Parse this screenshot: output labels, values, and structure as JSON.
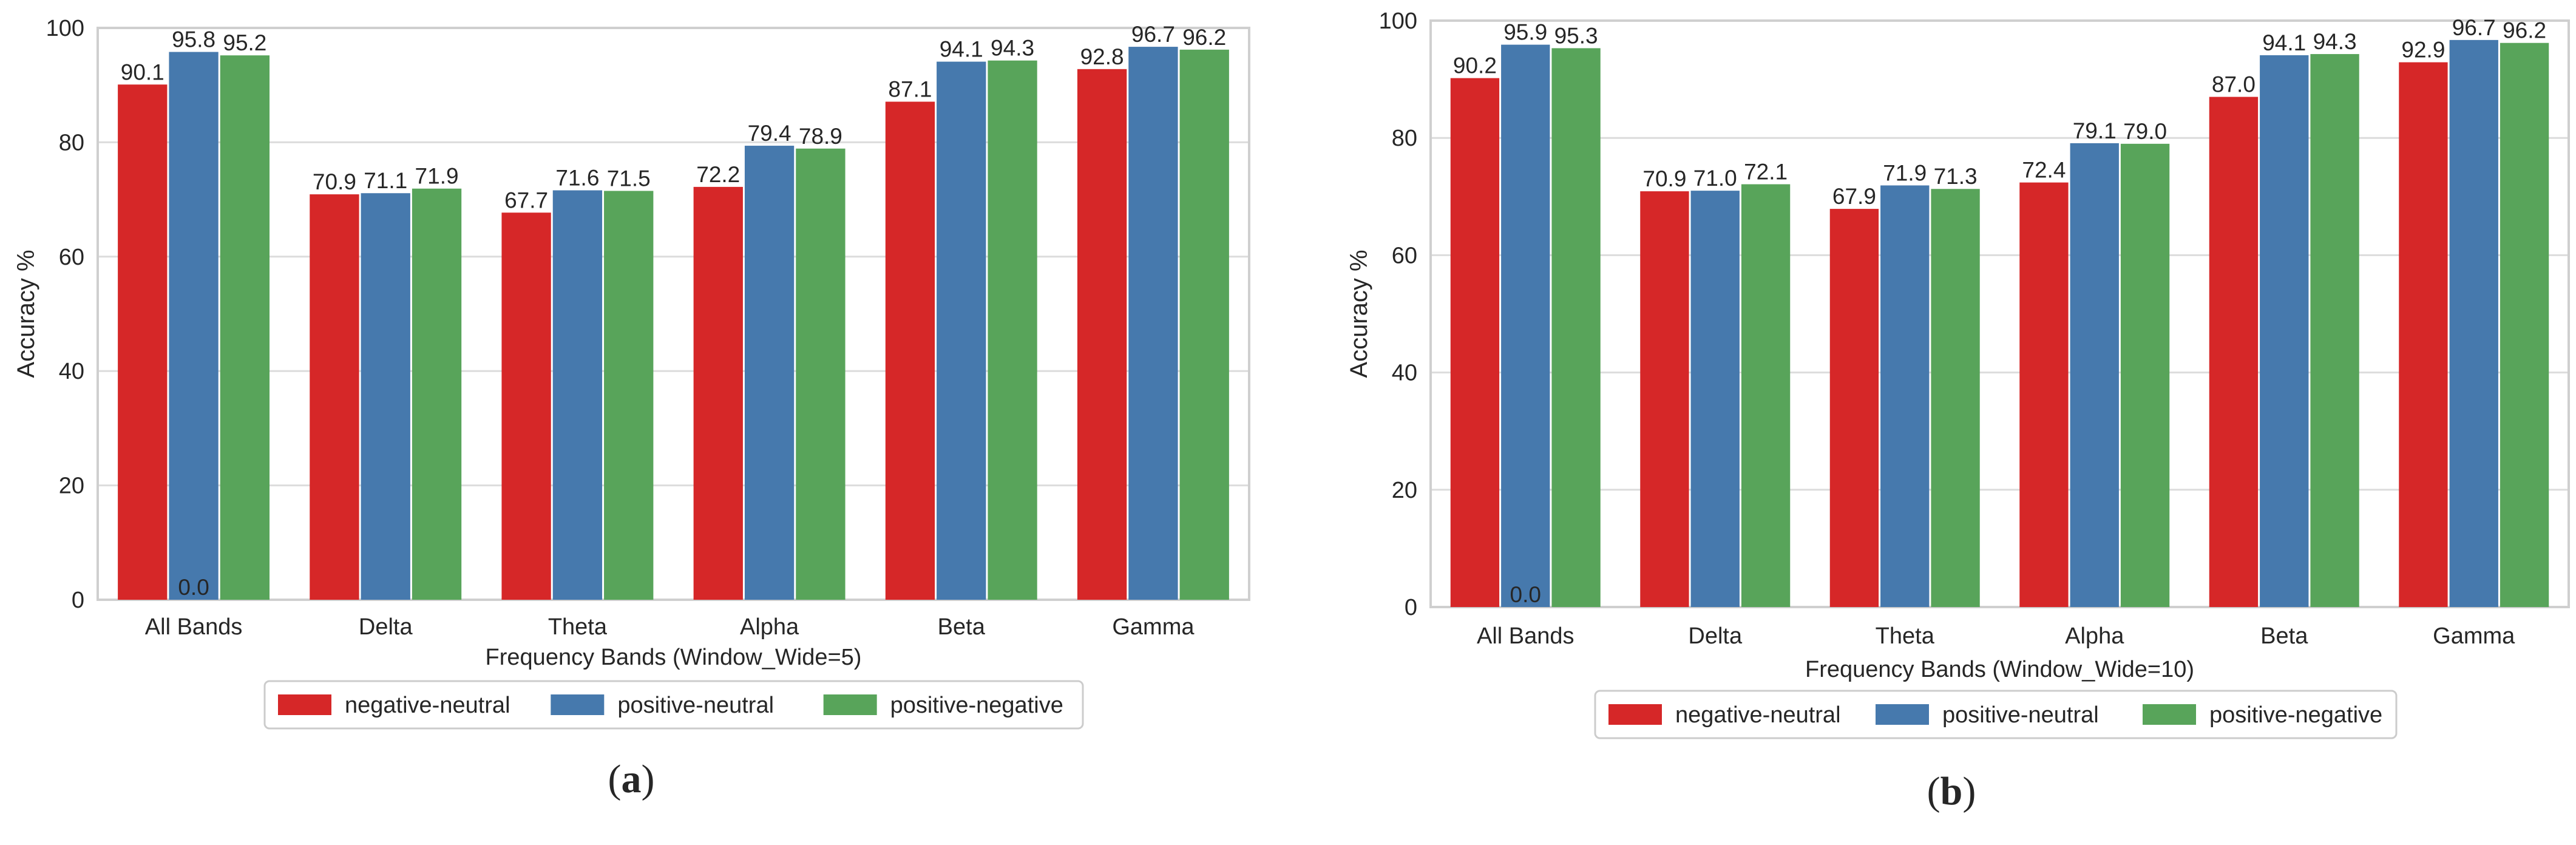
{
  "colors": {
    "negative-neutral": "#d62728",
    "positive-neutral": "#4679ad",
    "positive-negative": "#58a45a",
    "grid": "#dcdcdc",
    "frame": "#cfcfcf",
    "text": "#262626"
  },
  "chart_data": [
    {
      "type": "bar",
      "caption": "a",
      "title": "",
      "xlabel": "Frequency Bands (Window_Wide=5)",
      "ylabel": "Accuracy %",
      "ylim": [
        0,
        100
      ],
      "yticks": [
        "0",
        "20",
        "40",
        "60",
        "80",
        "100"
      ],
      "grid": true,
      "legend_position": "bottom-center",
      "categories": [
        "All Bands",
        "Delta",
        "Theta",
        "Alpha",
        "Beta",
        "Gamma"
      ],
      "series": [
        {
          "name": "negative-neutral",
          "color_key": "negative-neutral",
          "values": [
            90.1,
            70.9,
            67.7,
            72.2,
            87.1,
            92.8
          ],
          "labels": [
            "90.1",
            "70.9",
            "67.7",
            "72.2",
            "87.1",
            "92.8"
          ]
        },
        {
          "name": "positive-neutral",
          "color_key": "positive-neutral",
          "values": [
            95.8,
            71.1,
            71.6,
            79.4,
            94.1,
            96.7
          ],
          "labels": [
            "95.8",
            "71.1",
            "71.6",
            "79.4",
            "94.1",
            "96.7"
          ]
        },
        {
          "name": "positive-negative",
          "color_key": "positive-negative",
          "values": [
            95.2,
            71.9,
            71.5,
            78.9,
            94.3,
            96.2
          ],
          "labels": [
            "95.2",
            "71.9",
            "71.5",
            "78.9",
            "94.3",
            "96.2"
          ]
        }
      ],
      "annotations": [
        {
          "text": "0.0",
          "category": "All Bands",
          "series": "positive-neutral",
          "value": 0
        }
      ]
    },
    {
      "type": "bar",
      "caption": "b",
      "title": "",
      "xlabel": "Frequency Bands (Window_Wide=10)",
      "ylabel": "Accuracy %",
      "ylim": [
        0,
        100
      ],
      "yticks": [
        "0",
        "20",
        "40",
        "60",
        "80",
        "100"
      ],
      "grid": true,
      "legend_position": "bottom-center",
      "categories": [
        "All Bands",
        "Delta",
        "Theta",
        "Alpha",
        "Beta",
        "Gamma"
      ],
      "series": [
        {
          "name": "negative-neutral",
          "color_key": "negative-neutral",
          "values": [
            90.2,
            70.9,
            67.9,
            72.4,
            87.0,
            92.9
          ],
          "labels": [
            "90.2",
            "70.9",
            "67.9",
            "72.4",
            "87.0",
            "92.9"
          ]
        },
        {
          "name": "positive-neutral",
          "color_key": "positive-neutral",
          "values": [
            95.9,
            71.0,
            71.9,
            79.1,
            94.1,
            96.7
          ],
          "labels": [
            "95.9",
            "71.0",
            "71.9",
            "79.1",
            "94.1",
            "96.7"
          ]
        },
        {
          "name": "positive-negative",
          "color_key": "positive-negative",
          "values": [
            95.3,
            72.1,
            71.3,
            79.0,
            94.3,
            96.2
          ],
          "labels": [
            "95.3",
            "72.1",
            "71.3",
            "79.0",
            "94.3",
            "96.2"
          ]
        }
      ],
      "annotations": [
        {
          "text": "0.0",
          "category": "All Bands",
          "series": "positive-neutral",
          "value": 0
        }
      ]
    }
  ]
}
